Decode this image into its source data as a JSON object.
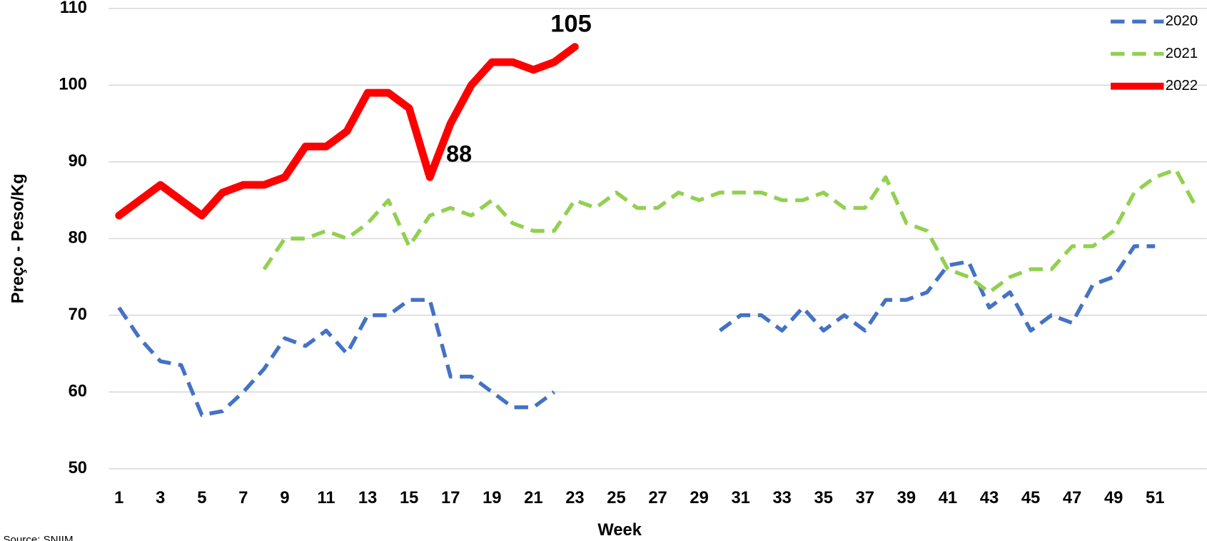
{
  "chart_data": {
    "type": "line",
    "x_label": "Week",
    "y_label": "Preço - Peso/Kg",
    "source": "Source: SNIIM",
    "x": [
      1,
      2,
      3,
      4,
      5,
      6,
      7,
      8,
      9,
      10,
      11,
      12,
      13,
      14,
      15,
      16,
      17,
      18,
      19,
      20,
      21,
      22,
      23,
      24,
      25,
      26,
      27,
      28,
      29,
      30,
      31,
      32,
      33,
      34,
      35,
      36,
      37,
      38,
      39,
      40,
      41,
      42,
      43,
      44,
      45,
      46,
      47,
      48,
      49,
      50,
      51,
      52,
      53
    ],
    "xlim": [
      0.5,
      53.5
    ],
    "xticks": [
      1,
      3,
      5,
      7,
      9,
      11,
      13,
      15,
      17,
      19,
      21,
      23,
      25,
      27,
      29,
      31,
      33,
      35,
      37,
      39,
      41,
      43,
      45,
      47,
      49,
      51
    ],
    "ylim": [
      50,
      110
    ],
    "yticks": [
      50,
      60,
      70,
      80,
      90,
      100,
      110
    ],
    "grid": true,
    "legend": "upper right",
    "series": [
      {
        "name": "2020",
        "color": "#4472c4",
        "dashed": true,
        "values": [
          71,
          67,
          64,
          63.5,
          57,
          57.5,
          60,
          63,
          67,
          66,
          68,
          65,
          70,
          70,
          72,
          72,
          62,
          62,
          60,
          58,
          58,
          60,
          null,
          null,
          null,
          null,
          null,
          null,
          null,
          68,
          70,
          70,
          68,
          71,
          68,
          70,
          68,
          72,
          72,
          73,
          76.5,
          77,
          71,
          73,
          68,
          70,
          69,
          74,
          75,
          79,
          79,
          null,
          null
        ]
      },
      {
        "name": "2021",
        "color": "#92d050",
        "dashed": true,
        "values": [
          null,
          null,
          null,
          null,
          null,
          null,
          null,
          76,
          80,
          80,
          81,
          80,
          82,
          85,
          79,
          83,
          84,
          83,
          85,
          82,
          81,
          81,
          85,
          84,
          86,
          84,
          84,
          86,
          85,
          86,
          86,
          86,
          85,
          85,
          86,
          84,
          84,
          88,
          82,
          81,
          76,
          75,
          73,
          75,
          76,
          76,
          79,
          79,
          81,
          86,
          88,
          89,
          84
        ]
      },
      {
        "name": "2022",
        "color": "#ff0000",
        "dashed": false,
        "values": [
          83,
          85,
          87,
          85,
          83,
          86,
          87,
          87,
          88,
          92,
          92,
          94,
          99,
          99,
          97,
          88,
          95,
          100,
          103,
          103,
          102,
          103,
          105,
          null,
          null,
          null,
          null,
          null,
          null,
          null,
          null,
          null,
          null,
          null,
          null,
          null,
          null,
          null,
          null,
          null,
          null,
          null,
          null,
          null,
          null,
          null,
          null,
          null,
          null,
          null,
          null,
          null,
          null
        ],
        "value_labels": [
          null,
          null,
          null,
          null,
          null,
          null,
          null,
          null,
          null,
          null,
          null,
          null,
          null,
          null,
          null,
          "88",
          null,
          null,
          null,
          null,
          null,
          null,
          "105",
          null,
          null,
          null,
          null,
          null,
          null,
          null,
          null,
          null,
          null,
          null,
          null,
          null,
          null,
          null,
          null,
          null,
          null,
          null,
          null,
          null,
          null,
          null,
          null,
          null,
          null,
          null,
          null,
          null,
          null
        ]
      }
    ]
  }
}
